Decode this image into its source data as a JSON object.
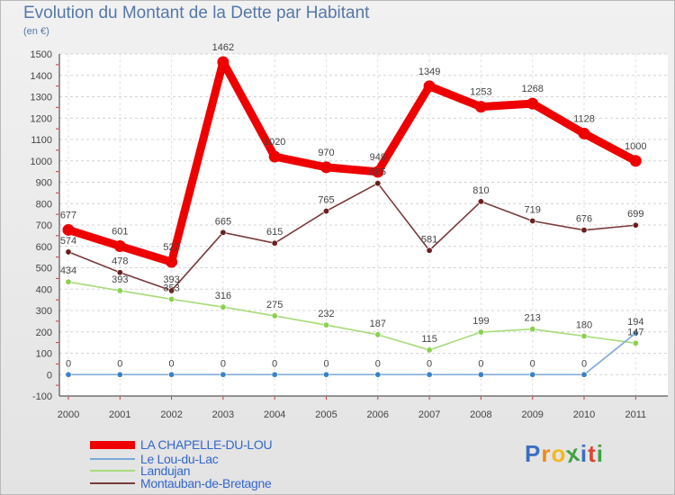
{
  "title": "Evolution du Montant de la Dette par Habitant",
  "unit_label": "(en €)",
  "logo": {
    "letters": [
      {
        "ch": "P",
        "color": "#3a6fc0"
      },
      {
        "ch": "r",
        "color": "#ee8a1a"
      },
      {
        "ch": "o",
        "color": "#f2b81e"
      },
      {
        "ch": "x",
        "color": "#3fa342"
      },
      {
        "ch": "i",
        "color": "#3a6fc0"
      },
      {
        "ch": "t",
        "color": "#e0432f"
      },
      {
        "ch": "i",
        "color": "#3fa342"
      }
    ]
  },
  "chart_data": {
    "type": "line",
    "x": [
      "2000",
      "2001",
      "2002",
      "2003",
      "2004",
      "2005",
      "2006",
      "2007",
      "2008",
      "2009",
      "2010",
      "2011"
    ],
    "ylim": [
      -100,
      1500
    ],
    "yticks": [
      -100,
      0,
      100,
      200,
      300,
      400,
      500,
      600,
      700,
      800,
      900,
      1000,
      1100,
      1200,
      1300,
      1400,
      1500
    ],
    "grid": "horizontal",
    "legend_position": "bottom-left",
    "series": [
      {
        "name": "LA CHAPELLE-DU-LOU",
        "color": "#ee0000",
        "style": "thick",
        "values": [
          677,
          601,
          527,
          1462,
          1020,
          970,
          949,
          1349,
          1253,
          1268,
          1128,
          1000
        ]
      },
      {
        "name": "Le Lou-du-Lac",
        "color": "#7aa7d8",
        "point_color": "#3a82c4",
        "style": "thin",
        "values": [
          0,
          0,
          0,
          0,
          0,
          0,
          0,
          0,
          0,
          0,
          0,
          194
        ]
      },
      {
        "name": "Landujan",
        "color": "#a7db7a",
        "point_color": "#8bd14f",
        "style": "thin",
        "values": [
          434,
          393,
          353,
          316,
          275,
          232,
          187,
          115,
          199,
          213,
          180,
          147
        ]
      },
      {
        "name": "Montauban-de-Bretagne",
        "color": "#7a3a3a",
        "point_color": "#6a1f1f",
        "style": "thin",
        "values": [
          574,
          478,
          393,
          665,
          615,
          765,
          895,
          581,
          810,
          719,
          676,
          699
        ]
      }
    ]
  }
}
